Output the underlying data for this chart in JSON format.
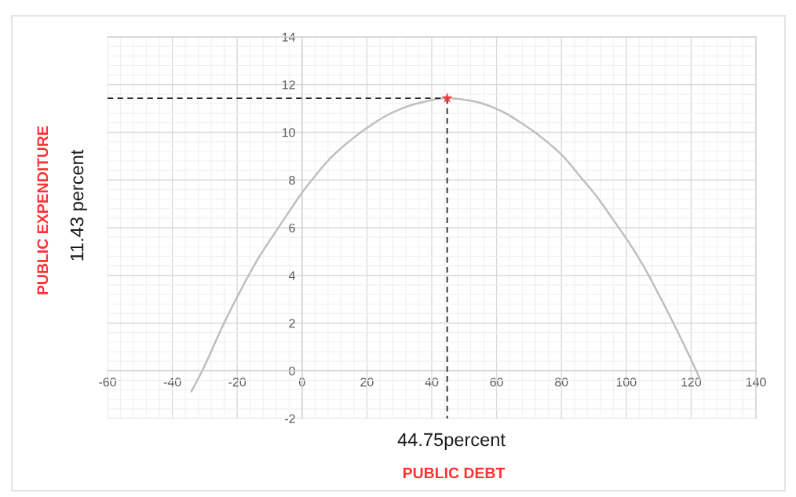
{
  "chart_data": {
    "type": "line",
    "xlabel": "PUBLIC DEBT",
    "ylabel": "PUBLIC EXPENDITURE",
    "annotations": [
      "44.75percent",
      "11.43 percent"
    ],
    "xlim": [
      -60,
      140
    ],
    "xticks": [
      -60,
      -40,
      -20,
      0,
      20,
      40,
      60,
      80,
      100,
      120,
      140
    ],
    "ylim": [
      -2,
      14
    ],
    "yticks": [
      -2,
      0,
      2,
      4,
      6,
      8,
      10,
      12,
      14
    ],
    "grid": true,
    "series": [
      {
        "color": "#bfbfbf",
        "marker": "none",
        "line_style": "solid",
        "x": [
          -34.1,
          -30.8,
          -24.3,
          -19.0,
          -13.7,
          -8.1,
          -2.8,
          0.0,
          4.1,
          8.2,
          13.9,
          20.2,
          28.5,
          36.7,
          44.75,
          52.9,
          60.2,
          68.4,
          77.3,
          80.6,
          86.3,
          90.3,
          96.8,
          101.3,
          106.6,
          109.0,
          112.3,
          115.5,
          121.6,
          122.8
        ],
        "values": [
          -0.86,
          0.0,
          1.93,
          3.36,
          4.67,
          5.84,
          6.92,
          7.47,
          8.18,
          8.84,
          9.55,
          10.2,
          10.87,
          11.25,
          11.43,
          11.3,
          10.97,
          10.32,
          9.4,
          8.98,
          8.06,
          7.41,
          6.17,
          5.28,
          4.08,
          3.46,
          2.6,
          1.73,
          0.0,
          -0.37
        ]
      },
      {
        "type": "line",
        "line_style": "dashed",
        "marker": "none",
        "color": "#262626",
        "x": [
          -60,
          44.75
        ],
        "values": [
          11.43,
          11.43
        ]
      },
      {
        "type": "line",
        "line_style": "dashed",
        "marker": "none",
        "color": "#262626",
        "x": [
          44.75,
          44.75
        ],
        "values": [
          11.43,
          -2
        ]
      },
      {
        "type": "scatter",
        "marker": "star",
        "color": "#ff3b3b",
        "x": [
          44.75
        ],
        "values": [
          11.43
        ]
      }
    ]
  }
}
